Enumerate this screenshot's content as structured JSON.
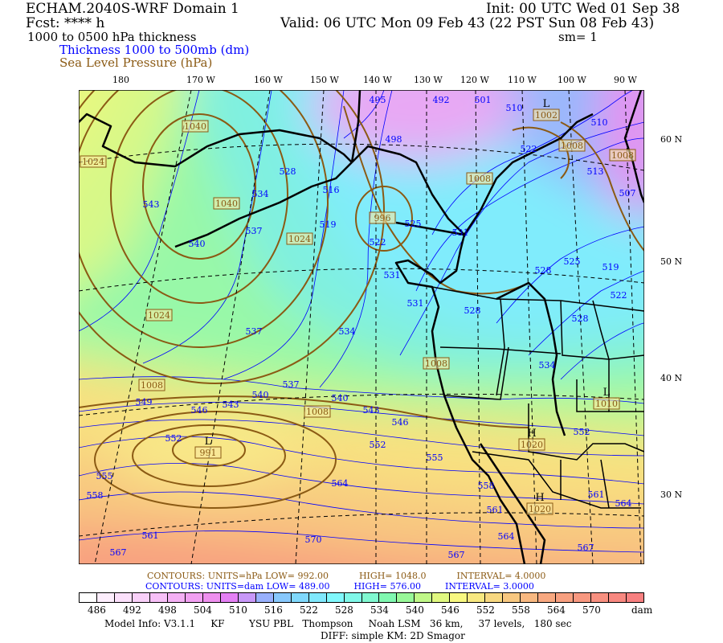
{
  "header": {
    "model_title": "ECHAM.2040S-WRF Domain 1",
    "init": "Init: 00 UTC Wed 01 Sep 38",
    "fcst": "Fcst: **** h",
    "valid": "Valid: 06 UTC Mon 09 Feb 43 (22 PST Sun 08 Feb 43)",
    "field": "1000 to 0500 hPa thickness",
    "smoothing": "sm= 1",
    "legend_thickness": "Thickness 1000 to 500mb (dm)",
    "legend_slp": "Sea Level Pressure (hPa)"
  },
  "colors": {
    "thickness": "#0000ff",
    "slp": "#8b5a14"
  },
  "map": {
    "longitude_labels": [
      "180",
      "170 W",
      "160 W",
      "150 W",
      "140 W",
      "130 W",
      "120 W",
      "110 W",
      "100 W",
      "90 W"
    ],
    "latitude_labels": [
      "60 N",
      "50 N",
      "40 N",
      "30 N"
    ],
    "thickness_labels": [
      "495",
      "492",
      "501",
      "510",
      "498",
      "522",
      "510",
      "528",
      "516",
      "534",
      "513",
      "507",
      "543",
      "519",
      "537",
      "525",
      "531",
      "540",
      "522",
      "528",
      "525",
      "519",
      "531",
      "522",
      "531",
      "528",
      "528",
      "537",
      "534",
      "534",
      "537",
      "540",
      "549",
      "543",
      "540",
      "543",
      "546",
      "546",
      "552",
      "552",
      "552",
      "555",
      "555",
      "558",
      "564",
      "558",
      "561",
      "561",
      "564",
      "561",
      "570",
      "564",
      "567",
      "567",
      "567"
    ],
    "pressure_labels": [
      "1040",
      "1024",
      "1002",
      "1008",
      "1008",
      "1008",
      "1040",
      "996",
      "1024",
      "1024",
      "1008",
      "1008",
      "1008",
      "991",
      "1010",
      "1020",
      "1020"
    ],
    "pressure_centers": [
      {
        "type": "L",
        "value": "991"
      },
      {
        "type": "L",
        "value": "1002"
      },
      {
        "type": "L",
        "value": "1010"
      },
      {
        "type": "H",
        "value": "1020"
      },
      {
        "type": "H",
        "value": "1020"
      }
    ]
  },
  "footer": {
    "slp_contours": {
      "label": "CONTOURS:",
      "units": "UNITS=hPa",
      "low": "LOW=",
      "low_val": "992.00",
      "high": "HIGH=",
      "high_val": "1048.0",
      "interval": "INTERVAL=",
      "interval_val": "4.0000"
    },
    "thk_contours": {
      "label": "CONTOURS:",
      "units": "UNITS=dam",
      "low": "LOW=",
      "low_val": "489.00",
      "high": "HIGH=",
      "high_val": "576.00",
      "interval": "INTERVAL=",
      "interval_val": "3.0000"
    },
    "colorbar_labels": [
      "486",
      "492",
      "498",
      "504",
      "510",
      "516",
      "522",
      "528",
      "534",
      "540",
      "546",
      "552",
      "558",
      "564",
      "570"
    ],
    "colorbar_unit": "dam",
    "colorbar_colors": [
      "#ffffff",
      "#fdeefd",
      "#fbe0fb",
      "#f9d0f9",
      "#f7c0f7",
      "#f4b0f4",
      "#f2a0f2",
      "#ee90ee",
      "#e480f4",
      "#c898f8",
      "#98b0fc",
      "#88c8fc",
      "#80d8fc",
      "#80e8fc",
      "#80f8fc",
      "#80f8e8",
      "#80f8d0",
      "#80f8b0",
      "#98f898",
      "#c0f888",
      "#e0f880",
      "#f8f880",
      "#f8e880",
      "#f8d880",
      "#f8c880",
      "#f8b880",
      "#f8a880",
      "#f8a080",
      "#f89880",
      "#f89080",
      "#f88880",
      "#f88080"
    ],
    "model_info": "Model Info: V3.1.1     KF        YSU PBL   Thompson     Noah LSM   36 km,     37 levels,   180 sec",
    "diff_info": "DIFF: simple KM: 2D Smagor"
  }
}
